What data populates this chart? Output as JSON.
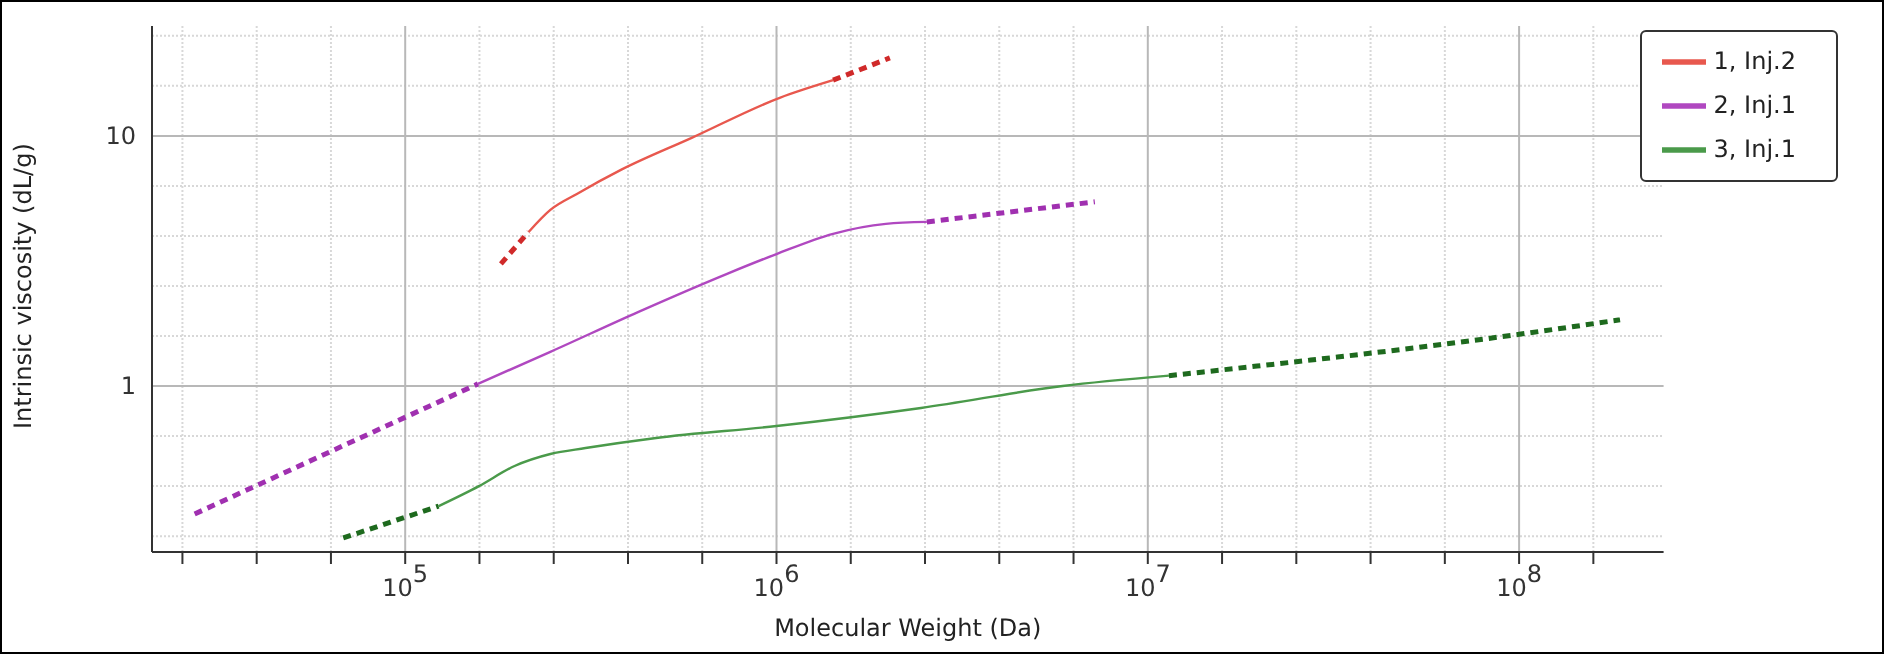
{
  "chart_data": {
    "type": "line",
    "xlabel": "Molecular Weight (Da)",
    "ylabel": "Intrinsic viscosity (dL/g)",
    "log": "xy",
    "grid": true,
    "legend": "top right",
    "xlim": [
      20800,
      245000000
    ],
    "ylim": [
      0.217,
      27.5
    ],
    "xticks": [
      {
        "value": 25119,
        "label": null
      },
      {
        "value": 39811,
        "label": null
      },
      {
        "value": 63096,
        "label": null
      },
      {
        "value": 100000,
        "label": "10$^{5}$"
      },
      {
        "value": 158489,
        "label": null
      },
      {
        "value": 251189,
        "label": null
      },
      {
        "value": 398107,
        "label": null
      },
      {
        "value": 630957,
        "label": null
      },
      {
        "value": 1000000,
        "label": "10$^{6}$"
      },
      {
        "value": 1584893,
        "label": null
      },
      {
        "value": 2511886,
        "label": null
      },
      {
        "value": 3981072,
        "label": null
      },
      {
        "value": 6309573,
        "label": null
      },
      {
        "value": 10000000,
        "label": "10$^{7}$"
      },
      {
        "value": 15848932,
        "label": null
      },
      {
        "value": 25118864,
        "label": null
      },
      {
        "value": 39810717,
        "label": null
      },
      {
        "value": 63095734,
        "label": null
      },
      {
        "value": 100000000,
        "label": "10$^{8}$"
      },
      {
        "value": 158489319,
        "label": null
      }
    ],
    "yticks": [
      {
        "value": 0.251,
        "label": null
      },
      {
        "value": 0.398,
        "label": null
      },
      {
        "value": 0.631,
        "label": null
      },
      1,
      {
        "value": 1.585,
        "label": null
      },
      {
        "value": 2.512,
        "label": null
      },
      {
        "value": 3.981,
        "label": null
      },
      {
        "value": 6.31,
        "label": null
      },
      10,
      {
        "value": 15.85,
        "label": null
      },
      {
        "value": 25.12,
        "label": null
      }
    ],
    "series": [
      {
        "name": "1, Inj.2",
        "color": "#e8584e",
        "line_style": "solid",
        "x": [
          215000,
          246000,
          290000,
          381000,
          591000,
          1020000,
          1420000
        ],
        "values": [
          4.13,
          5.06,
          5.86,
          7.31,
          9.82,
          14.2,
          16.7
        ]
      },
      {
        "color": "#d02a2a",
        "line_style": "dashed",
        "x": [
          181000,
          215000
        ],
        "values": [
          3.08,
          4.13
        ]
      },
      {
        "color": "#d02a2a",
        "line_style": "dashed",
        "x": [
          1420000,
          2020000
        ],
        "values": [
          16.7,
          20.5
        ]
      },
      {
        "name": "2, Inj.1",
        "color": "#b048c0",
        "line_style": "solid",
        "x": [
          157000,
          246000,
          425000,
          736000,
          1000000,
          1420000,
          1970000,
          2540000
        ],
        "values": [
          1.02,
          1.37,
          1.98,
          2.81,
          3.37,
          4.06,
          4.45,
          4.53
        ]
      },
      {
        "color": "#a030b0",
        "line_style": "dashed",
        "x": [
          27100,
          157000
        ],
        "values": [
          0.308,
          1.02
        ]
      },
      {
        "color": "#a030b0",
        "line_style": "dashed",
        "x": [
          2540000,
          7200000
        ],
        "values": [
          4.53,
          5.45
        ]
      },
      {
        "name": "3, Inj.1",
        "color": "#4a9a4a",
        "line_style": "solid",
        "x": [
          123000,
          158000,
          197000,
          246000,
          306000,
          474000,
          1000000,
          2450000,
          5900000,
          11400000
        ],
        "values": [
          0.331,
          0.398,
          0.479,
          0.535,
          0.565,
          0.62,
          0.692,
          0.817,
          1.0,
          1.1
        ]
      },
      {
        "color": "#1e6a1e",
        "line_style": "dashed",
        "x": [
          68100,
          123000
        ],
        "values": [
          0.247,
          0.331
        ]
      },
      {
        "color": "#1e6a1e",
        "line_style": "dashed",
        "x": [
          11400000,
          100000000,
          187000000
        ],
        "values": [
          1.1,
          1.61,
          1.84
        ]
      }
    ]
  }
}
